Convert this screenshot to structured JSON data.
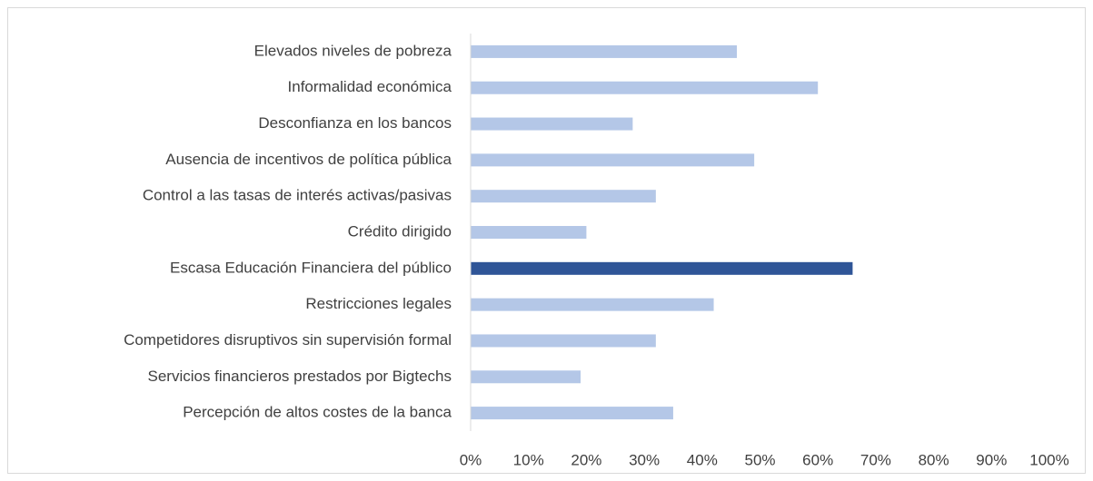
{
  "chart_data": {
    "type": "barh",
    "categories": [
      "Elevados niveles de pobreza",
      "Informalidad económica",
      "Desconfianza en los bancos",
      "Ausencia de incentivos de política pública",
      "Control a las tasas de interés activas/pasivas",
      "Crédito dirigido",
      "Escasa Educación Financiera del público",
      "Restricciones legales",
      "Competidores disruptivos sin supervisión formal",
      "Servicios financieros prestados por Bigtechs",
      "Percepción de altos costes de la banca"
    ],
    "values": [
      46,
      60,
      28,
      49,
      32,
      20,
      66,
      42,
      32,
      19,
      35
    ],
    "colors": [
      "#b4c7e7",
      "#b4c7e7",
      "#b4c7e7",
      "#b4c7e7",
      "#b4c7e7",
      "#b4c7e7",
      "#2f5597",
      "#b4c7e7",
      "#b4c7e7",
      "#b4c7e7",
      "#b4c7e7"
    ],
    "xlim": [
      0,
      100
    ],
    "xticks": [
      {
        "value": 0,
        "label": "0%"
      },
      {
        "value": 10,
        "label": "10%"
      },
      {
        "value": 20,
        "label": "20%"
      },
      {
        "value": 30,
        "label": "30%"
      },
      {
        "value": 40,
        "label": "40%"
      },
      {
        "value": 50,
        "label": "50%"
      },
      {
        "value": 60,
        "label": "60%"
      },
      {
        "value": 70,
        "label": "70%"
      },
      {
        "value": 80,
        "label": "80%"
      },
      {
        "value": 90,
        "label": "90%"
      },
      {
        "value": 100,
        "label": "100%"
      }
    ],
    "grid": false
  }
}
